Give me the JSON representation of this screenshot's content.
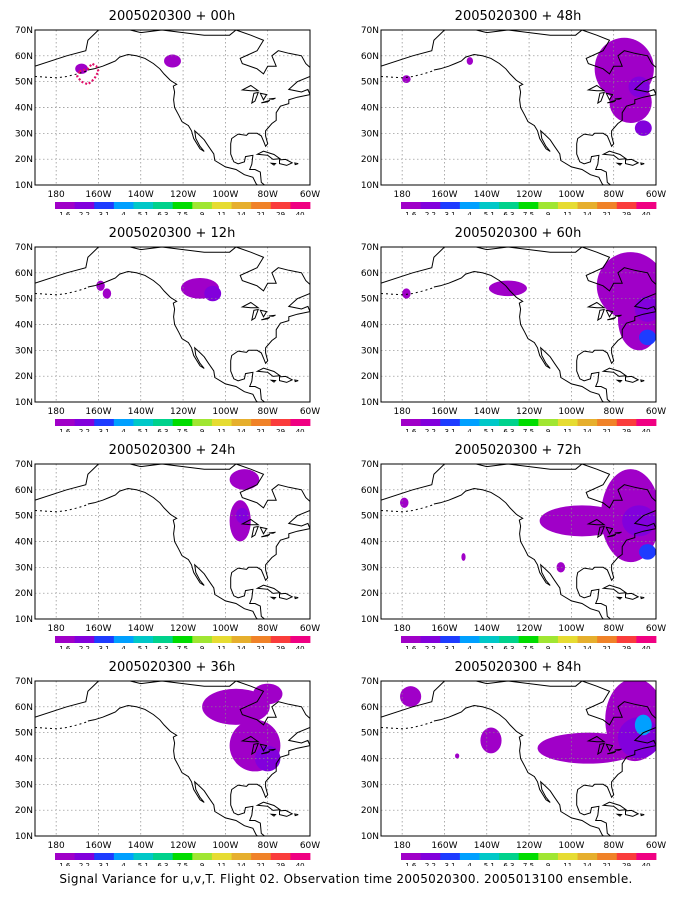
{
  "caption": "Signal Variance for u,v,T. Flight 02. Observation time 2005020300. 2005013100 ensemble.",
  "latitude_labels": [
    "70N",
    "60N",
    "50N",
    "40N",
    "30N",
    "20N",
    "10N"
  ],
  "longitude_labels": [
    "180",
    "160W",
    "140W",
    "120W",
    "100W",
    "80W",
    "60W"
  ],
  "colorbar": {
    "labels": [
      "1.6",
      "2.2",
      "3.1",
      "4",
      "5.1",
      "6.3",
      "7.5",
      "9",
      "11",
      "14",
      "21",
      "29",
      "40"
    ],
    "colors": [
      "#a000c8",
      "#8200dc",
      "#1e3cff",
      "#00a0ff",
      "#00c8c8",
      "#00d28c",
      "#00dc00",
      "#a0e632",
      "#e6dc32",
      "#e6af2d",
      "#f08228",
      "#fa3c3c",
      "#f00082"
    ]
  },
  "panels": [
    {
      "title": "2005020300 + 00h",
      "blobs": [
        {
          "lon": -168,
          "lat": 55,
          "rx": 3,
          "ry": 2,
          "level": 0
        },
        {
          "lon": -125,
          "lat": 58,
          "rx": 4,
          "ry": 2.5,
          "level": 0
        }
      ],
      "dotted_outline": true
    },
    {
      "title": "2005020300 + 12h",
      "blobs": [
        {
          "lon": -159,
          "lat": 55,
          "rx": 2,
          "ry": 2,
          "level": 0
        },
        {
          "lon": -156,
          "lat": 52,
          "rx": 2,
          "ry": 2,
          "level": 0
        },
        {
          "lon": -112,
          "lat": 54,
          "rx": 9,
          "ry": 4,
          "level": 0
        },
        {
          "lon": -106,
          "lat": 52,
          "rx": 4,
          "ry": 3,
          "level": 1
        }
      ]
    },
    {
      "title": "2005020300 + 24h",
      "blobs": [
        {
          "lon": -91,
          "lat": 64,
          "rx": 7,
          "ry": 4,
          "level": 0
        },
        {
          "lon": -93,
          "lat": 48,
          "rx": 5,
          "ry": 8,
          "level": 0
        },
        {
          "lon": -92,
          "lat": 50,
          "rx": 3,
          "ry": 3,
          "level": 1
        }
      ]
    },
    {
      "title": "2005020300 + 36h",
      "blobs": [
        {
          "lon": -95,
          "lat": 60,
          "rx": 16,
          "ry": 7,
          "level": 0
        },
        {
          "lon": -86,
          "lat": 45,
          "rx": 12,
          "ry": 10,
          "level": 0
        },
        {
          "lon": -80,
          "lat": 40,
          "rx": 6,
          "ry": 5,
          "level": 1
        },
        {
          "lon": -80,
          "lat": 65,
          "rx": 7,
          "ry": 4,
          "level": 0
        }
      ]
    },
    {
      "title": "2005020300 + 48h",
      "blobs": [
        {
          "lon": -178,
          "lat": 51,
          "rx": 2,
          "ry": 1.5,
          "level": 0
        },
        {
          "lon": -148,
          "lat": 58,
          "rx": 1.5,
          "ry": 1.5,
          "level": 0
        },
        {
          "lon": -75,
          "lat": 55,
          "rx": 14,
          "ry": 12,
          "level": 0
        },
        {
          "lon": -72,
          "lat": 42,
          "rx": 10,
          "ry": 8,
          "level": 0
        },
        {
          "lon": -68,
          "lat": 48,
          "rx": 5,
          "ry": 4,
          "level": 1
        },
        {
          "lon": -66,
          "lat": 32,
          "rx": 4,
          "ry": 3,
          "level": 1
        }
      ]
    },
    {
      "title": "2005020300 + 60h",
      "blobs": [
        {
          "lon": -178,
          "lat": 52,
          "rx": 2,
          "ry": 2,
          "level": 0
        },
        {
          "lon": -130,
          "lat": 54,
          "rx": 9,
          "ry": 3,
          "level": 0
        },
        {
          "lon": -72,
          "lat": 55,
          "rx": 16,
          "ry": 13,
          "level": 0
        },
        {
          "lon": -68,
          "lat": 42,
          "rx": 10,
          "ry": 12,
          "level": 0
        },
        {
          "lon": -64,
          "lat": 46,
          "rx": 6,
          "ry": 5,
          "level": 1
        },
        {
          "lon": -64,
          "lat": 35,
          "rx": 4,
          "ry": 3,
          "level": 2
        }
      ]
    },
    {
      "title": "2005020300 + 72h",
      "blobs": [
        {
          "lon": -179,
          "lat": 55,
          "rx": 2,
          "ry": 2,
          "level": 0
        },
        {
          "lon": -151,
          "lat": 34,
          "rx": 1,
          "ry": 1.5,
          "level": 0
        },
        {
          "lon": -105,
          "lat": 30,
          "rx": 2,
          "ry": 2,
          "level": 0
        },
        {
          "lon": -95,
          "lat": 48,
          "rx": 20,
          "ry": 6,
          "level": 0
        },
        {
          "lon": -72,
          "lat": 50,
          "rx": 14,
          "ry": 18,
          "level": 0
        },
        {
          "lon": -68,
          "lat": 48,
          "rx": 8,
          "ry": 6,
          "level": 1
        },
        {
          "lon": -64,
          "lat": 36,
          "rx": 4,
          "ry": 3,
          "level": 2
        }
      ]
    },
    {
      "title": "2005020300 + 84h",
      "blobs": [
        {
          "lon": -176,
          "lat": 64,
          "rx": 5,
          "ry": 4,
          "level": 0
        },
        {
          "lon": -138,
          "lat": 47,
          "rx": 5,
          "ry": 5,
          "level": 0
        },
        {
          "lon": -154,
          "lat": 41,
          "rx": 1,
          "ry": 1,
          "level": 0
        },
        {
          "lon": -92,
          "lat": 44,
          "rx": 24,
          "ry": 6,
          "level": 0
        },
        {
          "lon": -70,
          "lat": 55,
          "rx": 14,
          "ry": 16,
          "level": 0
        },
        {
          "lon": -68,
          "lat": 48,
          "rx": 10,
          "ry": 8,
          "level": 1
        },
        {
          "lon": -66,
          "lat": 53,
          "rx": 4,
          "ry": 4,
          "level": 3
        }
      ]
    }
  ]
}
